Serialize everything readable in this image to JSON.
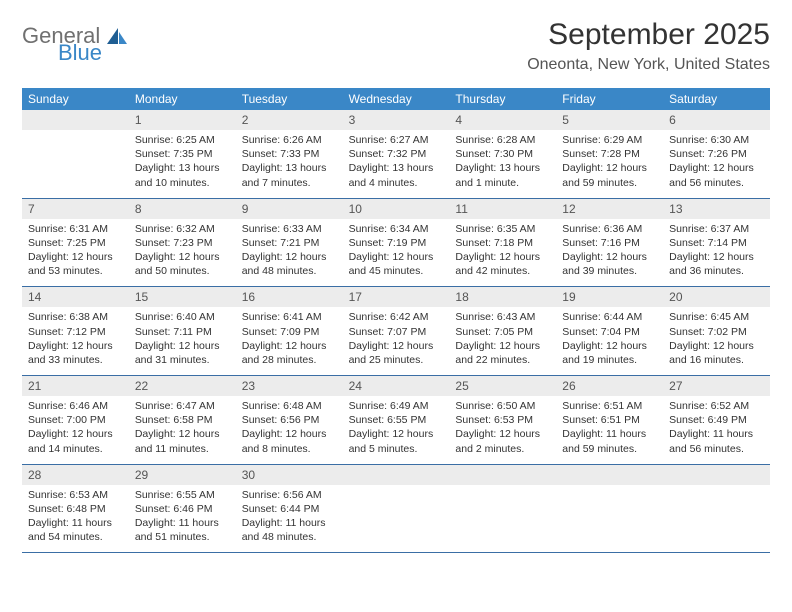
{
  "logo": {
    "general": "General",
    "blue": "Blue"
  },
  "header": {
    "month_title": "September 2025",
    "location": "Oneonta, New York, United States"
  },
  "style": {
    "accent_color": "#3a87c7",
    "daynum_bg": "#ececec",
    "row_border_color": "#3a6ea5",
    "text_color": "#333333",
    "muted_text": "#555555",
    "logo_gray": "#707070",
    "logo_blue": "#3a87c7",
    "background": "#ffffff",
    "month_title_fontsize": 30,
    "location_fontsize": 16,
    "weekday_fontsize": 12,
    "daynum_fontsize": 12,
    "detail_fontsize": 10.5
  },
  "weekdays": [
    "Sunday",
    "Monday",
    "Tuesday",
    "Wednesday",
    "Thursday",
    "Friday",
    "Saturday"
  ],
  "weeks": [
    [
      {
        "day": "",
        "sunrise": "",
        "sunset": "",
        "daylight": ""
      },
      {
        "day": "1",
        "sunrise": "Sunrise: 6:25 AM",
        "sunset": "Sunset: 7:35 PM",
        "daylight": "Daylight: 13 hours and 10 minutes."
      },
      {
        "day": "2",
        "sunrise": "Sunrise: 6:26 AM",
        "sunset": "Sunset: 7:33 PM",
        "daylight": "Daylight: 13 hours and 7 minutes."
      },
      {
        "day": "3",
        "sunrise": "Sunrise: 6:27 AM",
        "sunset": "Sunset: 7:32 PM",
        "daylight": "Daylight: 13 hours and 4 minutes."
      },
      {
        "day": "4",
        "sunrise": "Sunrise: 6:28 AM",
        "sunset": "Sunset: 7:30 PM",
        "daylight": "Daylight: 13 hours and 1 minute."
      },
      {
        "day": "5",
        "sunrise": "Sunrise: 6:29 AM",
        "sunset": "Sunset: 7:28 PM",
        "daylight": "Daylight: 12 hours and 59 minutes."
      },
      {
        "day": "6",
        "sunrise": "Sunrise: 6:30 AM",
        "sunset": "Sunset: 7:26 PM",
        "daylight": "Daylight: 12 hours and 56 minutes."
      }
    ],
    [
      {
        "day": "7",
        "sunrise": "Sunrise: 6:31 AM",
        "sunset": "Sunset: 7:25 PM",
        "daylight": "Daylight: 12 hours and 53 minutes."
      },
      {
        "day": "8",
        "sunrise": "Sunrise: 6:32 AM",
        "sunset": "Sunset: 7:23 PM",
        "daylight": "Daylight: 12 hours and 50 minutes."
      },
      {
        "day": "9",
        "sunrise": "Sunrise: 6:33 AM",
        "sunset": "Sunset: 7:21 PM",
        "daylight": "Daylight: 12 hours and 48 minutes."
      },
      {
        "day": "10",
        "sunrise": "Sunrise: 6:34 AM",
        "sunset": "Sunset: 7:19 PM",
        "daylight": "Daylight: 12 hours and 45 minutes."
      },
      {
        "day": "11",
        "sunrise": "Sunrise: 6:35 AM",
        "sunset": "Sunset: 7:18 PM",
        "daylight": "Daylight: 12 hours and 42 minutes."
      },
      {
        "day": "12",
        "sunrise": "Sunrise: 6:36 AM",
        "sunset": "Sunset: 7:16 PM",
        "daylight": "Daylight: 12 hours and 39 minutes."
      },
      {
        "day": "13",
        "sunrise": "Sunrise: 6:37 AM",
        "sunset": "Sunset: 7:14 PM",
        "daylight": "Daylight: 12 hours and 36 minutes."
      }
    ],
    [
      {
        "day": "14",
        "sunrise": "Sunrise: 6:38 AM",
        "sunset": "Sunset: 7:12 PM",
        "daylight": "Daylight: 12 hours and 33 minutes."
      },
      {
        "day": "15",
        "sunrise": "Sunrise: 6:40 AM",
        "sunset": "Sunset: 7:11 PM",
        "daylight": "Daylight: 12 hours and 31 minutes."
      },
      {
        "day": "16",
        "sunrise": "Sunrise: 6:41 AM",
        "sunset": "Sunset: 7:09 PM",
        "daylight": "Daylight: 12 hours and 28 minutes."
      },
      {
        "day": "17",
        "sunrise": "Sunrise: 6:42 AM",
        "sunset": "Sunset: 7:07 PM",
        "daylight": "Daylight: 12 hours and 25 minutes."
      },
      {
        "day": "18",
        "sunrise": "Sunrise: 6:43 AM",
        "sunset": "Sunset: 7:05 PM",
        "daylight": "Daylight: 12 hours and 22 minutes."
      },
      {
        "day": "19",
        "sunrise": "Sunrise: 6:44 AM",
        "sunset": "Sunset: 7:04 PM",
        "daylight": "Daylight: 12 hours and 19 minutes."
      },
      {
        "day": "20",
        "sunrise": "Sunrise: 6:45 AM",
        "sunset": "Sunset: 7:02 PM",
        "daylight": "Daylight: 12 hours and 16 minutes."
      }
    ],
    [
      {
        "day": "21",
        "sunrise": "Sunrise: 6:46 AM",
        "sunset": "Sunset: 7:00 PM",
        "daylight": "Daylight: 12 hours and 14 minutes."
      },
      {
        "day": "22",
        "sunrise": "Sunrise: 6:47 AM",
        "sunset": "Sunset: 6:58 PM",
        "daylight": "Daylight: 12 hours and 11 minutes."
      },
      {
        "day": "23",
        "sunrise": "Sunrise: 6:48 AM",
        "sunset": "Sunset: 6:56 PM",
        "daylight": "Daylight: 12 hours and 8 minutes."
      },
      {
        "day": "24",
        "sunrise": "Sunrise: 6:49 AM",
        "sunset": "Sunset: 6:55 PM",
        "daylight": "Daylight: 12 hours and 5 minutes."
      },
      {
        "day": "25",
        "sunrise": "Sunrise: 6:50 AM",
        "sunset": "Sunset: 6:53 PM",
        "daylight": "Daylight: 12 hours and 2 minutes."
      },
      {
        "day": "26",
        "sunrise": "Sunrise: 6:51 AM",
        "sunset": "Sunset: 6:51 PM",
        "daylight": "Daylight: 11 hours and 59 minutes."
      },
      {
        "day": "27",
        "sunrise": "Sunrise: 6:52 AM",
        "sunset": "Sunset: 6:49 PM",
        "daylight": "Daylight: 11 hours and 56 minutes."
      }
    ],
    [
      {
        "day": "28",
        "sunrise": "Sunrise: 6:53 AM",
        "sunset": "Sunset: 6:48 PM",
        "daylight": "Daylight: 11 hours and 54 minutes."
      },
      {
        "day": "29",
        "sunrise": "Sunrise: 6:55 AM",
        "sunset": "Sunset: 6:46 PM",
        "daylight": "Daylight: 11 hours and 51 minutes."
      },
      {
        "day": "30",
        "sunrise": "Sunrise: 6:56 AM",
        "sunset": "Sunset: 6:44 PM",
        "daylight": "Daylight: 11 hours and 48 minutes."
      },
      {
        "day": "",
        "sunrise": "",
        "sunset": "",
        "daylight": ""
      },
      {
        "day": "",
        "sunrise": "",
        "sunset": "",
        "daylight": ""
      },
      {
        "day": "",
        "sunrise": "",
        "sunset": "",
        "daylight": ""
      },
      {
        "day": "",
        "sunrise": "",
        "sunset": "",
        "daylight": ""
      }
    ]
  ]
}
